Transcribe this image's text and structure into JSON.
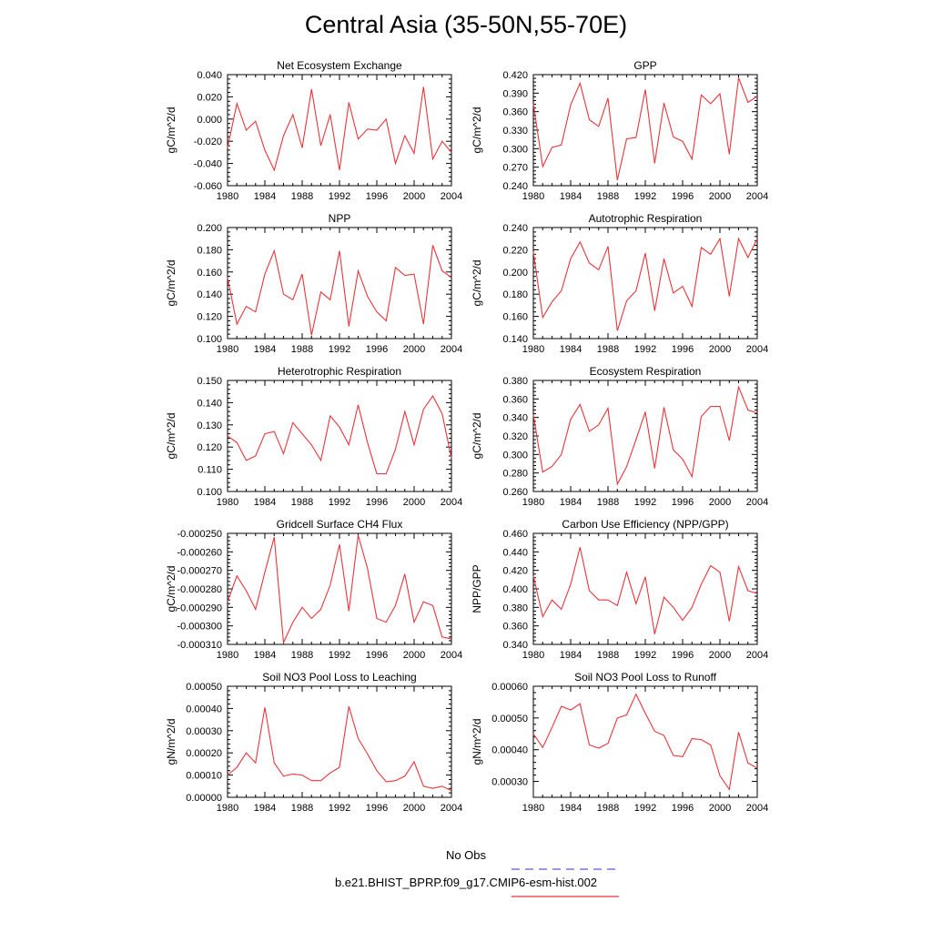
{
  "title": "Central Asia (35-50N,55-70E)",
  "legend": {
    "items": [
      {
        "label": "No Obs",
        "color": "#5b5bd6",
        "dash": true
      },
      {
        "label": "b.e21.BHIST_BPRP.f09_g17.CMIP6-esm-hist.002",
        "color": "#e8353a",
        "dash": false
      }
    ]
  },
  "chart_data": [
    {
      "type": "line",
      "title": "Net Ecosystem Exchange",
      "ylabel": "gC/m^2/d",
      "x": [
        1980,
        1981,
        1982,
        1983,
        1984,
        1985,
        1986,
        1987,
        1988,
        1989,
        1990,
        1991,
        1992,
        1993,
        1994,
        1995,
        1996,
        1997,
        1998,
        1999,
        2000,
        2001,
        2002,
        2003,
        2004
      ],
      "xlim": [
        1980,
        2004
      ],
      "xticks": [
        "1980",
        "1984",
        "1988",
        "1992",
        "1996",
        "2000",
        "2004"
      ],
      "ylim": [
        -0.06,
        0.04
      ],
      "yticks": [
        "-0.060",
        "-0.040",
        "-0.020",
        "0.000",
        "0.020",
        "0.040"
      ],
      "series": [
        {
          "values": [
            -0.026,
            0.014,
            -0.01,
            -0.002,
            -0.028,
            -0.046,
            -0.015,
            0.004,
            -0.026,
            0.027,
            -0.024,
            0.004,
            -0.046,
            0.015,
            -0.018,
            -0.009,
            -0.01,
            0.0,
            -0.04,
            -0.015,
            -0.031,
            0.029,
            -0.036,
            -0.02,
            -0.03
          ]
        }
      ]
    },
    {
      "type": "line",
      "title": "GPP",
      "ylabel": "gC/m^2/d",
      "x": [
        1980,
        1981,
        1982,
        1983,
        1984,
        1985,
        1986,
        1987,
        1988,
        1989,
        1990,
        1991,
        1992,
        1993,
        1994,
        1995,
        1996,
        1997,
        1998,
        1999,
        2000,
        2001,
        2002,
        2003,
        2004
      ],
      "xlim": [
        1980,
        2004
      ],
      "xticks": [
        "1980",
        "1984",
        "1988",
        "1992",
        "1996",
        "2000",
        "2004"
      ],
      "ylim": [
        0.24,
        0.42
      ],
      "yticks": [
        "0.240",
        "0.270",
        "0.300",
        "0.330",
        "0.360",
        "0.390",
        "0.420"
      ],
      "series": [
        {
          "values": [
            0.373,
            0.271,
            0.302,
            0.306,
            0.371,
            0.406,
            0.347,
            0.336,
            0.382,
            0.249,
            0.316,
            0.318,
            0.396,
            0.276,
            0.374,
            0.319,
            0.312,
            0.283,
            0.387,
            0.373,
            0.389,
            0.291,
            0.415,
            0.375,
            0.385
          ]
        }
      ]
    },
    {
      "type": "line",
      "title": "NPP",
      "ylabel": "gC/m^2/d",
      "x": [
        1980,
        1981,
        1982,
        1983,
        1984,
        1985,
        1986,
        1987,
        1988,
        1989,
        1990,
        1991,
        1992,
        1993,
        1994,
        1995,
        1996,
        1997,
        1998,
        1999,
        2000,
        2001,
        2002,
        2003,
        2004
      ],
      "xlim": [
        1980,
        2004
      ],
      "xticks": [
        "1980",
        "1984",
        "1988",
        "1992",
        "1996",
        "2000",
        "2004"
      ],
      "ylim": [
        0.1,
        0.2
      ],
      "yticks": [
        "0.100",
        "0.120",
        "0.140",
        "0.160",
        "0.180",
        "0.200"
      ],
      "series": [
        {
          "values": [
            0.155,
            0.113,
            0.129,
            0.124,
            0.158,
            0.179,
            0.14,
            0.135,
            0.158,
            0.103,
            0.142,
            0.135,
            0.179,
            0.111,
            0.161,
            0.138,
            0.124,
            0.116,
            0.164,
            0.157,
            0.158,
            0.113,
            0.184,
            0.161,
            0.155
          ]
        }
      ]
    },
    {
      "type": "line",
      "title": "Autotrophic Respiration",
      "ylabel": "gC/m^2/d",
      "x": [
        1980,
        1981,
        1982,
        1983,
        1984,
        1985,
        1986,
        1987,
        1988,
        1989,
        1990,
        1991,
        1992,
        1993,
        1994,
        1995,
        1996,
        1997,
        1998,
        1999,
        2000,
        2001,
        2002,
        2003,
        2004
      ],
      "xlim": [
        1980,
        2004
      ],
      "xticks": [
        "1980",
        "1984",
        "1988",
        "1992",
        "1996",
        "2000",
        "2004"
      ],
      "ylim": [
        0.14,
        0.24
      ],
      "yticks": [
        "0.140",
        "0.160",
        "0.180",
        "0.200",
        "0.220",
        "0.240"
      ],
      "series": [
        {
          "values": [
            0.218,
            0.159,
            0.173,
            0.183,
            0.212,
            0.227,
            0.208,
            0.202,
            0.223,
            0.147,
            0.174,
            0.183,
            0.217,
            0.165,
            0.212,
            0.181,
            0.187,
            0.169,
            0.222,
            0.216,
            0.23,
            0.178,
            0.23,
            0.213,
            0.23
          ]
        }
      ]
    },
    {
      "type": "line",
      "title": "Heterotrophic Respiration",
      "ylabel": "gC/m^2/d",
      "x": [
        1980,
        1981,
        1982,
        1983,
        1984,
        1985,
        1986,
        1987,
        1988,
        1989,
        1990,
        1991,
        1992,
        1993,
        1994,
        1995,
        1996,
        1997,
        1998,
        1999,
        2000,
        2001,
        2002,
        2003,
        2004
      ],
      "xlim": [
        1980,
        2004
      ],
      "xticks": [
        "1980",
        "1984",
        "1988",
        "1992",
        "1996",
        "2000",
        "2004"
      ],
      "ylim": [
        0.1,
        0.15
      ],
      "yticks": [
        "0.100",
        "0.110",
        "0.120",
        "0.130",
        "0.140",
        "0.150"
      ],
      "series": [
        {
          "values": [
            0.125,
            0.122,
            0.114,
            0.116,
            0.126,
            0.127,
            0.117,
            0.131,
            0.126,
            0.121,
            0.114,
            0.134,
            0.129,
            0.121,
            0.139,
            0.122,
            0.108,
            0.108,
            0.119,
            0.136,
            0.121,
            0.137,
            0.143,
            0.135,
            0.115
          ]
        }
      ]
    },
    {
      "type": "line",
      "title": "Ecosystem Respiration",
      "ylabel": "gC/m^2/d",
      "x": [
        1980,
        1981,
        1982,
        1983,
        1984,
        1985,
        1986,
        1987,
        1988,
        1989,
        1990,
        1991,
        1992,
        1993,
        1994,
        1995,
        1996,
        1997,
        1998,
        1999,
        2000,
        2001,
        2002,
        2003,
        2004
      ],
      "xlim": [
        1980,
        2004
      ],
      "xticks": [
        "1980",
        "1984",
        "1988",
        "1992",
        "1996",
        "2000",
        "2004"
      ],
      "ylim": [
        0.26,
        0.38
      ],
      "yticks": [
        "0.260",
        "0.280",
        "0.300",
        "0.320",
        "0.340",
        "0.360",
        "0.380"
      ],
      "series": [
        {
          "values": [
            0.343,
            0.281,
            0.287,
            0.3,
            0.338,
            0.354,
            0.325,
            0.332,
            0.35,
            0.268,
            0.287,
            0.316,
            0.346,
            0.285,
            0.351,
            0.305,
            0.295,
            0.276,
            0.341,
            0.352,
            0.352,
            0.315,
            0.373,
            0.348,
            0.345
          ]
        }
      ]
    },
    {
      "type": "line",
      "title": "Gridcell Surface CH4 Flux",
      "ylabel": "gC/m^2/d",
      "x": [
        1980,
        1981,
        1982,
        1983,
        1984,
        1985,
        1986,
        1987,
        1988,
        1989,
        1990,
        1991,
        1992,
        1993,
        1994,
        1995,
        1996,
        1997,
        1998,
        1999,
        2000,
        2001,
        2002,
        2003,
        2004
      ],
      "xlim": [
        1980,
        2004
      ],
      "xticks": [
        "1980",
        "1984",
        "1988",
        "1992",
        "1996",
        "2000",
        "2004"
      ],
      "ylim": [
        -0.00031,
        -0.00025
      ],
      "yticks": [
        "-0.000310",
        "-0.000300",
        "-0.000290",
        "-0.000280",
        "-0.000270",
        "-0.000260",
        "-0.000250"
      ],
      "series": [
        {
          "values": [
            -0.000287,
            -0.000273,
            -0.000281,
            -0.000291,
            -0.000271,
            -0.000252,
            -0.000309,
            -0.000298,
            -0.00029,
            -0.000296,
            -0.000291,
            -0.000278,
            -0.000256,
            -0.000292,
            -0.000251,
            -0.000269,
            -0.000296,
            -0.000298,
            -0.000289,
            -0.000272,
            -0.000298,
            -0.000287,
            -0.000289,
            -0.000306,
            -0.000307
          ]
        }
      ]
    },
    {
      "type": "line",
      "title": "Carbon Use Efficiency (NPP/GPP)",
      "ylabel": "NPP/GPP",
      "x": [
        1980,
        1981,
        1982,
        1983,
        1984,
        1985,
        1986,
        1987,
        1988,
        1989,
        1990,
        1991,
        1992,
        1993,
        1994,
        1995,
        1996,
        1997,
        1998,
        1999,
        2000,
        2001,
        2002,
        2003,
        2004
      ],
      "xlim": [
        1980,
        2004
      ],
      "xticks": [
        "1980",
        "1984",
        "1988",
        "1992",
        "1996",
        "2000",
        "2004"
      ],
      "ylim": [
        0.34,
        0.46
      ],
      "yticks": [
        "0.340",
        "0.360",
        "0.380",
        "0.400",
        "0.420",
        "0.440",
        "0.460"
      ],
      "series": [
        {
          "values": [
            0.414,
            0.37,
            0.388,
            0.378,
            0.405,
            0.445,
            0.398,
            0.388,
            0.388,
            0.382,
            0.418,
            0.384,
            0.413,
            0.351,
            0.391,
            0.38,
            0.366,
            0.38,
            0.405,
            0.425,
            0.418,
            0.365,
            0.424,
            0.398,
            0.395
          ]
        }
      ]
    },
    {
      "type": "line",
      "title": "Soil NO3 Pool Loss to Leaching",
      "ylabel": "gN/m^2/d",
      "x": [
        1980,
        1981,
        1982,
        1983,
        1984,
        1985,
        1986,
        1987,
        1988,
        1989,
        1990,
        1991,
        1992,
        1993,
        1994,
        1995,
        1996,
        1997,
        1998,
        1999,
        2000,
        2001,
        2002,
        2003,
        2004
      ],
      "xlim": [
        1980,
        2004
      ],
      "xticks": [
        "1980",
        "1984",
        "1988",
        "1992",
        "1996",
        "2000",
        "2004"
      ],
      "ylim": [
        0,
        0.0005
      ],
      "yticks": [
        "0.00000",
        "0.00010",
        "0.00020",
        "0.00030",
        "0.00040",
        "0.00050"
      ],
      "series": [
        {
          "values": [
            0.0001,
            0.000135,
            0.0002,
            0.000155,
            0.000405,
            0.000155,
            9.5e-05,
            0.000105,
            0.0001,
            7.5e-05,
            7.5e-05,
            0.00011,
            0.000135,
            0.00041,
            0.000265,
            0.000195,
            0.00012,
            7e-05,
            7.5e-05,
            9.5e-05,
            0.00016,
            5e-05,
            4e-05,
            5e-05,
            3e-05
          ]
        }
      ]
    },
    {
      "type": "line",
      "title": "Soil NO3 Pool Loss to Runoff",
      "ylabel": "gN/m^2/d",
      "x": [
        1980,
        1981,
        1982,
        1983,
        1984,
        1985,
        1986,
        1987,
        1988,
        1989,
        1990,
        1991,
        1992,
        1993,
        1994,
        1995,
        1996,
        1997,
        1998,
        1999,
        2000,
        2001,
        2002,
        2003,
        2004
      ],
      "xlim": [
        1980,
        2004
      ],
      "xticks": [
        "1980",
        "1984",
        "1988",
        "1992",
        "1996",
        "2000",
        "2004"
      ],
      "ylim": [
        0.00025,
        0.0006
      ],
      "yticks": [
        "0.00030",
        "0.00040",
        "0.00050",
        "0.00060"
      ],
      "series": [
        {
          "values": [
            0.00045,
            0.000407,
            0.00047,
            0.000537,
            0.000525,
            0.000545,
            0.000415,
            0.000405,
            0.00042,
            0.0005,
            0.00051,
            0.000575,
            0.000515,
            0.000458,
            0.000445,
            0.000382,
            0.000378,
            0.000435,
            0.000432,
            0.000415,
            0.000318,
            0.000275,
            0.000455,
            0.000358,
            0.000342
          ]
        }
      ]
    }
  ]
}
